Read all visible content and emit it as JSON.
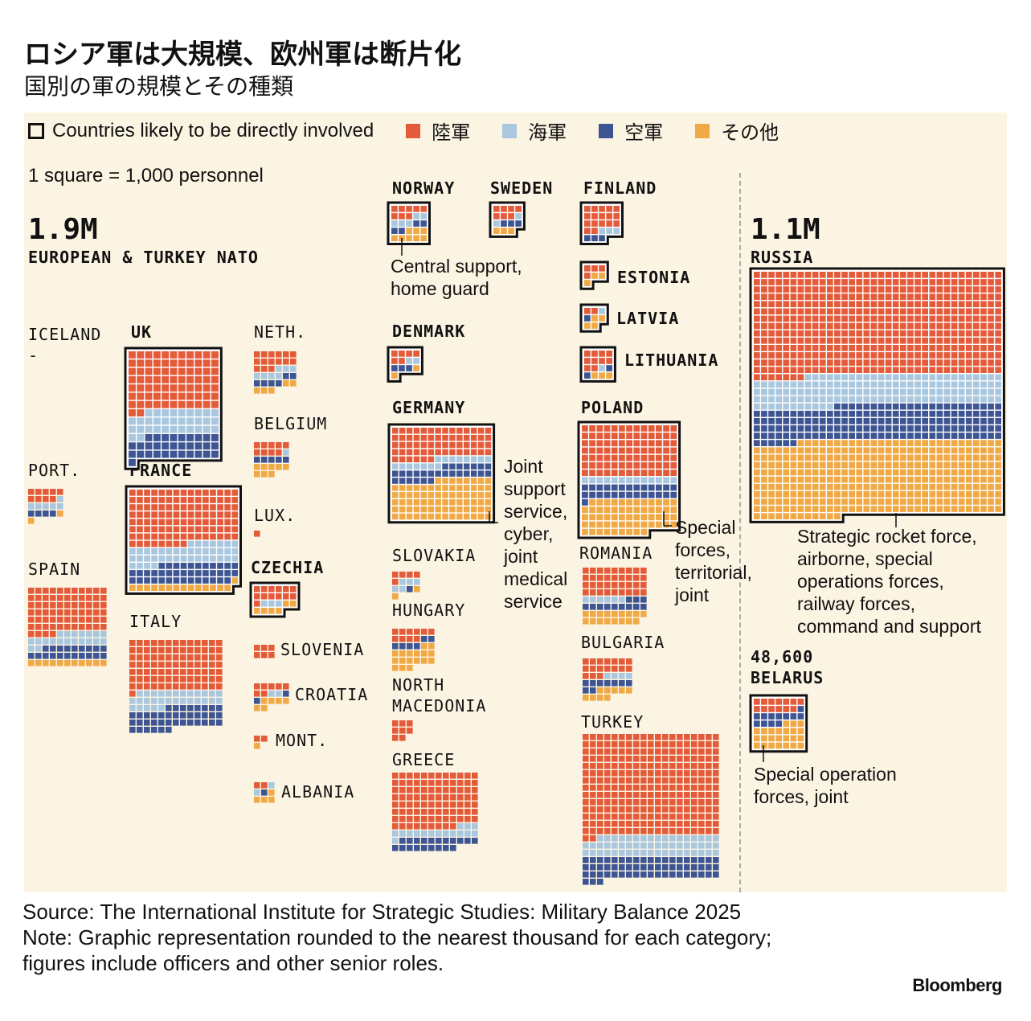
{
  "header": {
    "title": "ロシア軍は大規模、欧州軍は断片化",
    "subtitle": "国別の軍の規模とその種類"
  },
  "legend": {
    "outline_label": "Countries likely to be directly involved",
    "categories": [
      {
        "key": "army",
        "label": "陸軍",
        "color": "#e45b3a"
      },
      {
        "key": "navy",
        "label": "海軍",
        "color": "#a9c7de"
      },
      {
        "key": "air",
        "label": "空軍",
        "color": "#3d5593"
      },
      {
        "key": "other",
        "label": "その他",
        "color": "#f1a945"
      }
    ],
    "scale_note": "1 square = 1,000 personnel"
  },
  "groups": {
    "nato": {
      "total": "1.9M",
      "label": "EUROPEAN & TURKEY NATO"
    },
    "russia": {
      "total": "1.1M",
      "label": "RUSSIA"
    },
    "belarus": {
      "total": "48,600",
      "label": "BELARUS"
    }
  },
  "annotations": {
    "norway": "Central support,\nhome guard",
    "germany": "Joint\nsupport\nservice,\ncyber,\njoint\nmedical\nservice",
    "poland": "Special\nforces,\nterritorial,\njoint",
    "russia": "Strategic rocket force,\nairborne, special\noperations forces,\nrailway forces,\ncommand and support",
    "belarus": "Special operation\nforces, joint"
  },
  "chart_data": {
    "type": "waffle",
    "title": "ロシア軍は大規模、欧州軍は断片化",
    "subtitle": "国別の軍の規模とその種類",
    "unit": "1 square = 1,000 personnel",
    "categories": [
      "陸軍",
      "海軍",
      "空軍",
      "その他"
    ],
    "countries": [
      {
        "id": "iceland",
        "name": "ICELAND",
        "involved": false,
        "army": 0,
        "navy": 0,
        "air": 0,
        "other": 0,
        "note": "-"
      },
      {
        "id": "uk",
        "name": "UK",
        "involved": true,
        "army": 79,
        "navy": 33,
        "air": 32,
        "other": 0
      },
      {
        "id": "neth",
        "name": "NETH.",
        "involved": false,
        "army": 15,
        "navy": 7,
        "air": 6,
        "other": 5
      },
      {
        "id": "belgium",
        "name": "BELGIUM",
        "involved": false,
        "army": 9,
        "navy": 1,
        "air": 5,
        "other": 8
      },
      {
        "id": "lux",
        "name": "LUX.",
        "involved": false,
        "army": 1,
        "navy": 0,
        "air": 0,
        "other": 0
      },
      {
        "id": "port",
        "name": "PORT.",
        "involved": false,
        "army": 9,
        "navy": 6,
        "air": 4,
        "other": 2
      },
      {
        "id": "france",
        "name": "FRANCE",
        "involved": true,
        "army": 113,
        "navy": 41,
        "air": 40,
        "other": 15
      },
      {
        "id": "czechia",
        "name": "CZECHIA",
        "involved": true,
        "army": 13,
        "navy": 3,
        "air": 0,
        "other": 6
      },
      {
        "id": "spain",
        "name": "SPAIN",
        "involved": false,
        "army": 70,
        "navy": 20,
        "air": 20,
        "other": 11
      },
      {
        "id": "italy",
        "name": "ITALY",
        "involved": false,
        "army": 92,
        "navy": 30,
        "air": 40,
        "other": 0
      },
      {
        "id": "slovenia",
        "name": "SLOVENIA",
        "involved": false,
        "army": 6,
        "navy": 0,
        "air": 0,
        "other": 0
      },
      {
        "id": "croatia",
        "name": "CROATIA",
        "involved": false,
        "army": 7,
        "navy": 2,
        "air": 2,
        "other": 6
      },
      {
        "id": "mont",
        "name": "MONT.",
        "involved": false,
        "army": 2,
        "navy": 0,
        "air": 0,
        "other": 1
      },
      {
        "id": "albania",
        "name": "ALBANIA",
        "involved": false,
        "army": 2,
        "navy": 2,
        "air": 1,
        "other": 4
      },
      {
        "id": "norway",
        "name": "NORWAY",
        "involved": true,
        "army": 8,
        "navy": 5,
        "air": 4,
        "other": 8
      },
      {
        "id": "sweden",
        "name": "SWEDEN",
        "involved": true,
        "army": 7,
        "navy": 2,
        "air": 3,
        "other": 3
      },
      {
        "id": "finland",
        "name": "FINLAND",
        "involved": true,
        "army": 17,
        "navy": 3,
        "air": 3,
        "other": 0
      },
      {
        "id": "estonia",
        "name": "ESTONIA",
        "involved": true,
        "army": 4,
        "navy": 0,
        "air": 0,
        "other": 3
      },
      {
        "id": "latvia",
        "name": "LATVIA",
        "involved": true,
        "army": 2,
        "navy": 1,
        "air": 1,
        "other": 4
      },
      {
        "id": "lithuania",
        "name": "LITHUANIA",
        "involved": true,
        "army": 10,
        "navy": 1,
        "air": 2,
        "other": 3
      },
      {
        "id": "denmark",
        "name": "DENMARK",
        "involved": true,
        "army": 6,
        "navy": 2,
        "air": 3,
        "other": 2
      },
      {
        "id": "germany",
        "name": "GERMANY",
        "involved": true,
        "army": 62,
        "navy": 15,
        "air": 27,
        "other": 78
      },
      {
        "id": "poland",
        "name": "POLAND",
        "involved": true,
        "army": 91,
        "navy": 13,
        "air": 27,
        "other": 60
      },
      {
        "id": "slovakia",
        "name": "SLOVAKIA",
        "involved": false,
        "army": 5,
        "navy": 5,
        "air": 1,
        "other": 2
      },
      {
        "id": "hungary",
        "name": "HUNGARY",
        "involved": false,
        "army": 10,
        "navy": 0,
        "air": 6,
        "other": 17
      },
      {
        "id": "romania",
        "name": "ROMANIA",
        "involved": false,
        "army": 36,
        "navy": 6,
        "air": 12,
        "other": 17
      },
      {
        "id": "north_macedonia",
        "name": "NORTH\nMACEDONIA",
        "involved": false,
        "army": 8,
        "navy": 0,
        "air": 0,
        "other": 0
      },
      {
        "id": "bulgaria",
        "name": "BULGARIA",
        "involved": false,
        "army": 17,
        "navy": 4,
        "air": 9,
        "other": 9
      },
      {
        "id": "greece",
        "name": "GREECE",
        "involved": false,
        "army": 93,
        "navy": 16,
        "air": 20,
        "other": 0
      },
      {
        "id": "turkey",
        "name": "TURKEY",
        "involved": false,
        "army": 268,
        "navy": 55,
        "air": 60,
        "other": 0
      },
      {
        "id": "russia",
        "name": "RUSSIA",
        "involved": true,
        "army": 483,
        "navy": 140,
        "air": 165,
        "other": 346
      },
      {
        "id": "belarus",
        "name": "BELARUS",
        "involved": true,
        "army": 13,
        "navy": 0,
        "air": 12,
        "other": 24
      }
    ]
  },
  "footer": {
    "source": "Source: The International Institute for Strategic Studies: Military Balance 2025",
    "note": "Note: Graphic representation rounded to the nearest thousand for each category; figures include officers and other senior roles.",
    "brand": "Bloomberg"
  }
}
